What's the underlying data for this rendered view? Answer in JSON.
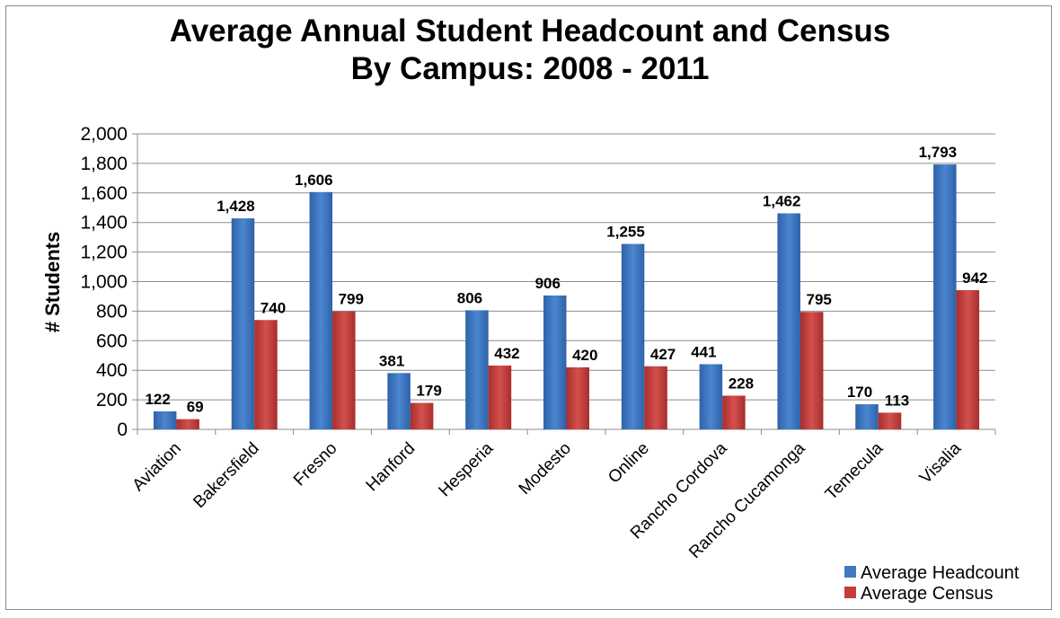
{
  "chart_data": {
    "type": "bar",
    "title_lines": [
      "Average Annual Student Headcount and Census",
      "By Campus: 2008 - 2011"
    ],
    "ylabel": "# Students",
    "xlabel": "",
    "ylim": [
      0,
      2000
    ],
    "yticks": [
      0,
      200,
      400,
      600,
      800,
      1000,
      1200,
      1400,
      1600,
      1800,
      2000
    ],
    "ytick_labels": [
      "0",
      "200",
      "400",
      "600",
      "800",
      "1,000",
      "1,200",
      "1,400",
      "1,600",
      "1,800",
      "2,000"
    ],
    "grid": true,
    "legend_position": "bottom-right",
    "categories": [
      "Aviation",
      "Bakersfield",
      "Fresno",
      "Hanford",
      "Hesperia",
      "Modesto",
      "Online",
      "Rancho Cordova",
      "Rancho Cucamonga",
      "Temecula",
      "Visalia"
    ],
    "series": [
      {
        "name": "Average Headcount",
        "color": "#3f78c4",
        "values": [
          122,
          1428,
          1606,
          381,
          806,
          906,
          1255,
          441,
          1462,
          170,
          1793
        ],
        "labels": [
          "122",
          "1,428",
          "1,606",
          "381",
          "806",
          "906",
          "1,255",
          "441",
          "1,462",
          "170",
          "1,793"
        ]
      },
      {
        "name": "Average Census",
        "color": "#c63c3a",
        "values": [
          69,
          740,
          799,
          179,
          432,
          420,
          427,
          228,
          795,
          113,
          942
        ],
        "labels": [
          "69",
          "740",
          "799",
          "179",
          "432",
          "420",
          "427",
          "228",
          "795",
          "113",
          "942"
        ]
      }
    ]
  }
}
